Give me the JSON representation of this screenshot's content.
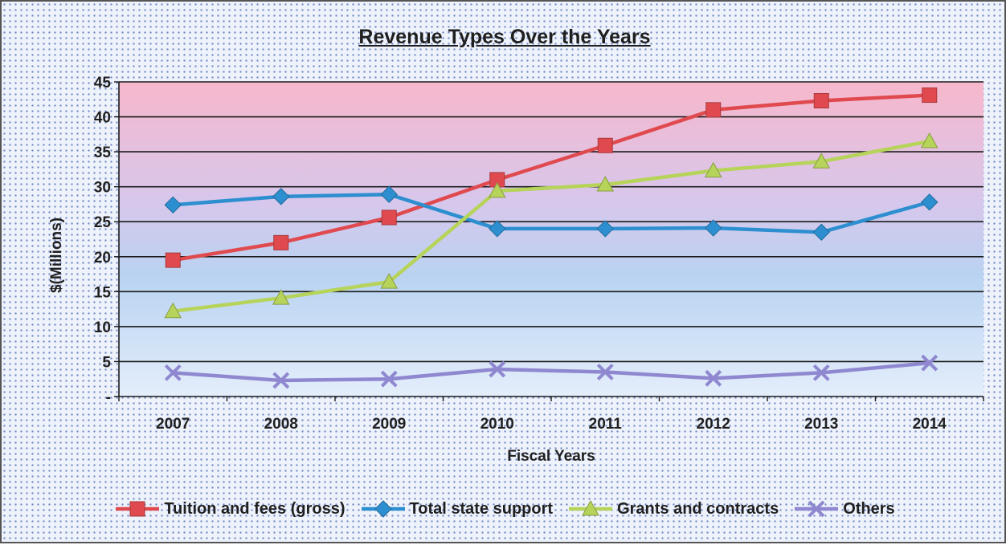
{
  "chart_data": {
    "type": "line",
    "title": "Revenue Types Over the Years",
    "xlabel": "Fiscal Years",
    "ylabel": "$(Millions)",
    "ylim": [
      0,
      45
    ],
    "yticks": [
      "-",
      "5",
      "10",
      "15",
      "20",
      "25",
      "30",
      "35",
      "40",
      "45"
    ],
    "categories": [
      "2007",
      "2008",
      "2009",
      "2010",
      "2011",
      "2012",
      "2013",
      "2014"
    ],
    "grid": true,
    "legend_position": "bottom",
    "series": [
      {
        "name": "Tuition and fees (gross)",
        "marker": "square",
        "color": "#e04a4f",
        "values": [
          19.5,
          22.0,
          25.6,
          31.0,
          35.9,
          41.0,
          42.3,
          43.1
        ]
      },
      {
        "name": "Total state support",
        "marker": "diamond",
        "color": "#2d8fd0",
        "values": [
          27.4,
          28.6,
          28.9,
          24.0,
          24.0,
          24.1,
          23.5,
          27.8
        ]
      },
      {
        "name": "Grants and contracts",
        "marker": "triangle",
        "color": "#b6d35a",
        "values": [
          12.2,
          14.1,
          16.4,
          29.4,
          30.3,
          32.3,
          33.6,
          36.5
        ]
      },
      {
        "name": "Others",
        "marker": "x",
        "color": "#8f88d0",
        "values": [
          3.4,
          2.3,
          2.5,
          3.9,
          3.5,
          2.6,
          3.4,
          4.8
        ]
      }
    ]
  }
}
